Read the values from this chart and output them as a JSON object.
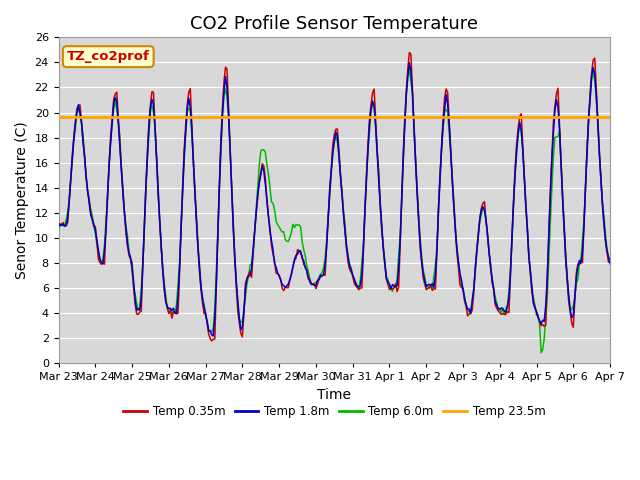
{
  "title": "CO2 Profile Sensor Temperature",
  "ylabel": "Senor Temperature (C)",
  "xlabel": "Time",
  "annotation": "TZ_co2prof",
  "ylim": [
    0,
    26
  ],
  "flat_line_value": 19.65,
  "legend": [
    "Temp 0.35m",
    "Temp 1.8m",
    "Temp 6.0m",
    "Temp 23.5m"
  ],
  "line_colors": [
    "#cc0000",
    "#0000cc",
    "#00bb00",
    "#ffa500"
  ],
  "background_color": "#d8d8d8",
  "xtick_labels": [
    "Mar 23",
    "Mar 24",
    "Mar 25",
    "Mar 26",
    "Mar 27",
    "Mar 28",
    "Mar 29",
    "Mar 30",
    "Mar 31",
    "Apr 1",
    "Apr 2",
    "Apr 3",
    "Apr 4",
    "Apr 5",
    "Apr 6",
    "Apr 7"
  ],
  "title_fontsize": 13,
  "axis_fontsize": 10,
  "tick_fontsize": 8
}
